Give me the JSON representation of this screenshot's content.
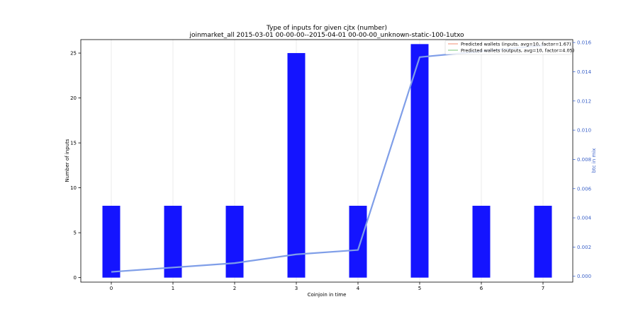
{
  "chart_data": {
    "type": "bar",
    "title": "Type of inputs for given cjtx (number)",
    "subtitle": "joinmarket_all 2015-03-01 00-00-00--2015-04-01 00-00-00_unknown-static-100-1utxo",
    "xlabel": "Coinjoin in time",
    "ylabel": "Number of inputs",
    "y2label": "btc in mix",
    "categories": [
      "0",
      "1",
      "2",
      "3",
      "4",
      "5",
      "6",
      "7"
    ],
    "series": [
      {
        "values": [
          8,
          8,
          8,
          25,
          8,
          26,
          8,
          8
        ],
        "color": "#1414ff"
      }
    ],
    "line_series": [
      {
        "axis": "right",
        "color": "#7f9ee8",
        "values": [
          0.0003,
          0.0006,
          0.0009,
          0.0015,
          0.0018,
          0.015,
          0.0154,
          0.0158
        ]
      }
    ],
    "legend": {
      "placement": "top-right",
      "entries": [
        {
          "label": "Predicted wallets (inputs, avg=10, factor=1.67)",
          "color": "#f4a08a"
        },
        {
          "label": "Predicted wallets (outputs, avg=10, factor=4.05)",
          "color": "#8ed08e"
        }
      ]
    },
    "ylim": [
      -0.5,
      26.5
    ],
    "y2lim": [
      -0.0004,
      0.0162
    ],
    "yticks": [
      0,
      5,
      10,
      15,
      20,
      25
    ],
    "y2ticks": [
      "0.000",
      "0.002",
      "0.004",
      "0.006",
      "0.008",
      "0.010",
      "0.012",
      "0.014",
      "0.016"
    ],
    "xgrid": true,
    "right_axis_color": "#3d63c9"
  }
}
